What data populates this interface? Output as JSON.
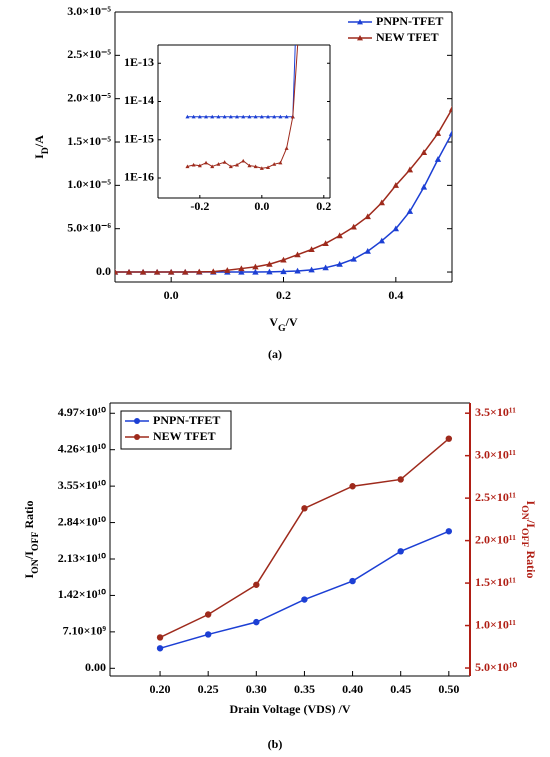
{
  "chart_data": [
    {
      "type": "line",
      "caption": "(a)",
      "x_label": [
        {
          "text": "V"
        },
        {
          "text": "G",
          "sub": true
        },
        {
          "text": "/V"
        }
      ],
      "y_label": [
        {
          "text": "I"
        },
        {
          "text": "D",
          "sub": true
        },
        {
          "text": "/A"
        }
      ],
      "x": [
        -0.1,
        -0.075,
        -0.05,
        -0.025,
        0,
        0.025,
        0.05,
        0.075,
        0.1,
        0.125,
        0.15,
        0.175,
        0.2,
        0.225,
        0.25,
        0.275,
        0.3,
        0.325,
        0.35,
        0.375,
        0.4,
        0.425,
        0.45,
        0.475,
        0.5
      ],
      "xlim": [
        -0.1,
        0.5
      ],
      "xticks": [
        {
          "value": 0,
          "label": "0.0"
        },
        0.2,
        0.4
      ],
      "ylim": [
        -1.15e-06,
        3e-05
      ],
      "yticks": [
        {
          "value": 0,
          "label": "0.0"
        },
        {
          "value": 5e-06,
          "label": "5.0×10⁻⁶"
        },
        {
          "value": 1e-05,
          "label": "1.0×10⁻⁵"
        },
        {
          "value": 1.5e-05,
          "label": "1.5×10⁻⁵"
        },
        {
          "value": 2e-05,
          "label": "2.0×10⁻⁵"
        },
        {
          "value": 2.5e-05,
          "label": "2.5×10⁻⁵"
        },
        {
          "value": 3e-05,
          "label": "3.0×10⁻⁵"
        }
      ],
      "legend": "upper right",
      "series": [
        {
          "name": "PNPN-TFET",
          "color": "#1c3fd4",
          "marker": "triangle",
          "values": [
            0,
            0,
            0,
            0,
            0,
            0,
            0,
            0,
            0,
            0,
            0,
            2e-08,
            6e-08,
            1.2e-07,
            2.5e-07,
            5e-07,
            9e-07,
            1.5e-06,
            2.4e-06,
            3.6e-06,
            5e-06,
            7e-06,
            9.8e-06,
            1.3e-05,
            1.6e-05
          ]
        },
        {
          "name": "NEW TFET",
          "color": "#9e2a1c",
          "marker": "triangle",
          "values": [
            0,
            0,
            0,
            0,
            0,
            0,
            2e-08,
            5e-08,
            2e-07,
            4e-07,
            6e-07,
            9e-07,
            1.4e-06,
            2e-06,
            2.6e-06,
            3.3e-06,
            4.2e-06,
            5.2e-06,
            6.4e-06,
            8e-06,
            1e-05,
            1.18e-05,
            1.38e-05,
            1.6e-05,
            1.88e-05
          ]
        }
      ]
    },
    {
      "type": "line",
      "log_y": true,
      "xlim": [
        -0.335,
        0.22
      ],
      "xticks": [
        -0.2,
        {
          "value": 0,
          "label": "0.0"
        },
        0.2
      ],
      "ylim": [
        3e-17,
        3e-13
      ],
      "yticks": [
        {
          "value": 1e-13,
          "label": "1E-13"
        },
        {
          "value": 1e-14,
          "label": "1E-14"
        },
        {
          "value": 1e-15,
          "label": "1E-15"
        },
        {
          "value": 1e-16,
          "label": "1E-16"
        }
      ],
      "series": [
        {
          "color": "#1c3fd4",
          "marker": "triangle",
          "x": [
            -0.24,
            -0.22,
            -0.2,
            -0.18,
            -0.16,
            -0.14,
            -0.12,
            -0.1,
            -0.08,
            -0.06,
            -0.04,
            -0.02,
            0,
            0.02,
            0.04,
            0.06,
            0.08,
            0.1,
            0.11
          ],
          "values": [
            4e-15,
            4e-15,
            4e-15,
            4e-15,
            4e-15,
            4e-15,
            4e-15,
            4e-15,
            4e-15,
            4e-15,
            4e-15,
            4e-15,
            4e-15,
            4e-15,
            4e-15,
            4e-15,
            4e-15,
            4e-15,
            1e-12
          ]
        },
        {
          "color": "#9e2a1c",
          "marker": "triangle",
          "x": [
            -0.24,
            -0.22,
            -0.2,
            -0.18,
            -0.16,
            -0.14,
            -0.12,
            -0.1,
            -0.08,
            -0.06,
            -0.04,
            -0.02,
            0,
            0.02,
            0.04,
            0.06,
            0.08,
            0.1,
            0.12
          ],
          "values": [
            2e-16,
            2.2e-16,
            2.1e-16,
            2.5e-16,
            2e-16,
            2.3e-16,
            2.6e-16,
            2e-16,
            2.2e-16,
            2.8e-16,
            2.1e-16,
            2e-16,
            1.8e-16,
            1.9e-16,
            2.3e-16,
            2.5e-16,
            6e-16,
            4e-15,
            1e-12
          ]
        }
      ]
    },
    {
      "type": "line",
      "caption": "(b)",
      "x_label": [
        {
          "text": "Drain Voltage (VDS) /V"
        }
      ],
      "y_label": [
        {
          "text": "I"
        },
        {
          "text": "ON",
          "sub": true
        },
        {
          "text": "/I"
        },
        {
          "text": "OFF",
          "sub": true
        },
        {
          "text": " Ratio"
        }
      ],
      "y2_label": [
        {
          "text": "I"
        },
        {
          "text": "ON",
          "sub": true
        },
        {
          "text": "/I"
        },
        {
          "text": "OFF",
          "sub": true
        },
        {
          "text": " Ratio"
        }
      ],
      "y2_color": "#b01e14",
      "x": [
        0.2,
        0.25,
        0.3,
        0.35,
        0.4,
        0.45,
        0.5
      ],
      "xlim": [
        0.148,
        0.522
      ],
      "xticks": [
        {
          "value": 0.2,
          "label": "0.20"
        },
        {
          "value": 0.25,
          "label": "0.25"
        },
        {
          "value": 0.3,
          "label": "0.30"
        },
        {
          "value": 0.35,
          "label": "0.35"
        },
        {
          "value": 0.4,
          "label": "0.40"
        },
        {
          "value": 0.45,
          "label": "0.45"
        },
        {
          "value": 0.5,
          "label": "0.50"
        }
      ],
      "ylim": [
        -1500000000.0,
        51700000000.0
      ],
      "yticks": [
        {
          "value": 0,
          "label": "0.00"
        },
        {
          "value": 7100000000.0,
          "label": "7.10×10⁹"
        },
        {
          "value": 14200000000.0,
          "label": "1.42×10¹⁰"
        },
        {
          "value": 21300000000.0,
          "label": "2.13×10¹⁰"
        },
        {
          "value": 28400000000.0,
          "label": "2.84×10¹⁰"
        },
        {
          "value": 35500000000.0,
          "label": "3.55×10¹⁰"
        },
        {
          "value": 42600000000.0,
          "label": "4.26×10¹⁰"
        },
        {
          "value": 49700000000.0,
          "label": "4.97×10¹⁰"
        }
      ],
      "y2lim": [
        40600000000.0,
        362000000000.0
      ],
      "y2ticks": [
        {
          "value": 50000000000.0,
          "label": "5.0×10¹⁰"
        },
        {
          "value": 100000000000.0,
          "label": "1.0×10¹¹"
        },
        {
          "value": 150000000000.0,
          "label": "1.5×10¹¹"
        },
        {
          "value": 200000000000.0,
          "label": "2.0×10¹¹"
        },
        {
          "value": 250000000000.0,
          "label": "2.5×10¹¹"
        },
        {
          "value": 300000000000.0,
          "label": "3.0×10¹¹"
        },
        {
          "value": 350000000000.0,
          "label": "3.5×10¹¹"
        }
      ],
      "legend": "upper left",
      "series": [
        {
          "name": "PNPN-TFET",
          "color": "#1c3fd4",
          "marker": "circle",
          "values": [
            3900000000.0,
            6600000000.0,
            9000000000.0,
            13400000000.0,
            17000000000.0,
            22800000000.0,
            26700000000.0
          ]
        },
        {
          "name": "NEW TFET",
          "color": "#9e2a1c",
          "marker": "circle",
          "axis": "y2",
          "values": [
            86000000000.0,
            113000000000.0,
            148000000000.0,
            238000000000.0,
            264000000000.0,
            272000000000.0,
            320000000000.0
          ]
        }
      ]
    }
  ]
}
